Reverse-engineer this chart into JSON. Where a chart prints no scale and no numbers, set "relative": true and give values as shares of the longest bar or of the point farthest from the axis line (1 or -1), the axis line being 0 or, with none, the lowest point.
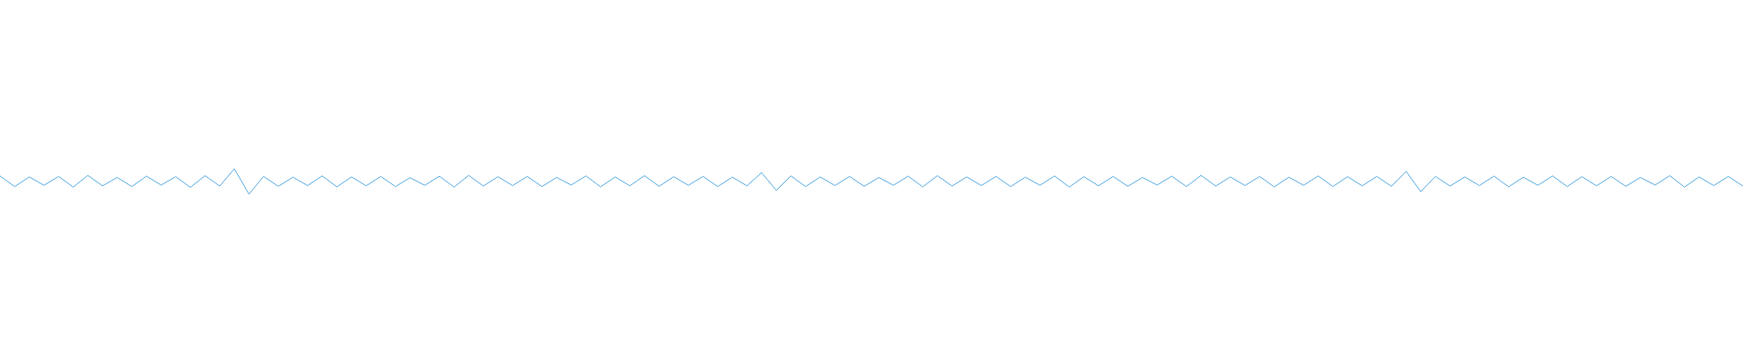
{
  "chart_data": {
    "type": "line",
    "relative": true,
    "marker": "none",
    "categories": [
      null,
      null,
      null,
      null,
      null,
      null,
      null,
      null,
      null,
      null,
      null,
      null,
      null,
      null,
      null,
      null,
      null,
      null,
      null,
      null,
      null,
      null,
      null,
      null,
      null,
      null,
      null,
      null,
      null,
      null,
      null,
      null,
      null,
      null,
      null,
      null,
      null,
      null,
      null,
      null,
      null,
      null,
      null,
      null,
      null,
      null,
      null,
      null,
      null,
      null,
      null,
      null,
      null,
      null,
      null,
      null,
      null,
      null,
      null,
      null,
      null,
      null,
      null,
      null,
      null,
      null,
      null,
      null,
      null,
      null,
      null,
      null,
      null,
      null,
      null,
      null,
      null,
      null,
      null,
      null,
      null,
      null,
      null,
      null,
      null,
      null,
      null,
      null,
      null,
      null,
      null,
      null,
      null,
      null,
      null,
      null,
      null,
      null,
      null,
      null,
      null,
      null,
      null,
      null,
      null,
      null,
      null,
      null,
      null,
      null,
      null,
      null,
      null,
      null,
      null,
      null,
      null,
      null,
      null,
      null
    ],
    "series": [
      {
        "color": "#5dade2",
        "values": [
          0.72,
          0.3,
          0.68,
          0.35,
          0.7,
          0.28,
          0.74,
          0.33,
          0.66,
          0.3,
          0.71,
          0.36,
          0.69,
          0.27,
          0.73,
          0.32,
          1,
          0,
          0.7,
          0.31,
          0.67,
          0.34,
          0.72,
          0.29,
          0.68,
          0.33,
          0.7,
          0.3,
          0.65,
          0.35,
          0.71,
          0.28,
          0.74,
          0.32,
          0.69,
          0.34,
          0.7,
          0.3,
          0.66,
          0.36,
          0.72,
          0.29,
          0.68,
          0.33,
          0.73,
          0.31,
          0.69,
          0.35,
          0.7,
          0.3,
          0.67,
          0.33,
          0.85,
          0.15,
          0.72,
          0.3,
          0.68,
          0.34,
          0.7,
          0.31,
          0.66,
          0.35,
          0.71,
          0.29,
          0.73,
          0.32,
          0.68,
          0.34,
          0.7,
          0.3,
          0.67,
          0.35,
          0.72,
          0.28,
          0.69,
          0.33,
          0.7,
          0.31,
          0.66,
          0.36,
          0.71,
          0.3,
          0.74,
          0.32,
          0.68,
          0.34,
          0.7,
          0.29,
          0.67,
          0.35,
          0.72,
          0.3,
          0.69,
          0.33,
          0.7,
          0.31,
          0.9,
          0.1,
          0.7,
          0.32,
          0.68,
          0.34,
          0.71,
          0.29,
          0.67,
          0.35,
          0.72,
          0.3,
          0.69,
          0.33,
          0.7,
          0.31,
          0.66,
          0.36,
          0.73,
          0.28,
          0.68,
          0.34,
          0.7,
          0.32
        ]
      }
    ]
  }
}
